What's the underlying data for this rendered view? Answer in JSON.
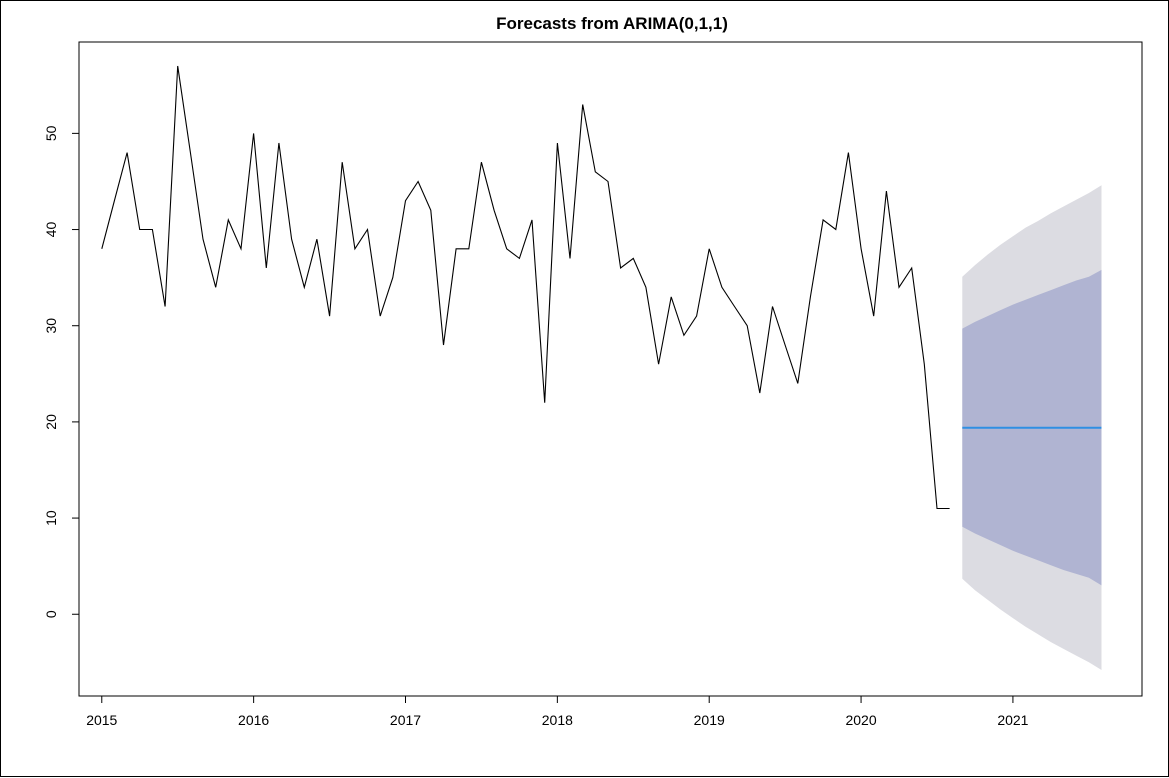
{
  "chart_data": {
    "type": "line",
    "title": "Forecasts from ARIMA(0,1,1)",
    "xlabel": "",
    "ylabel": "",
    "xlim": [
      2014.85,
      2021.85
    ],
    "ylim": [
      -8.5,
      59.5
    ],
    "x_ticks": [
      2015,
      2016,
      2017,
      2018,
      2019,
      2020,
      2021
    ],
    "x_tick_labels": [
      "2015",
      "2016",
      "2017",
      "2018",
      "2019",
      "2020",
      "2021"
    ],
    "y_ticks": [
      0,
      10,
      20,
      30,
      40,
      50
    ],
    "y_tick_labels": [
      "0",
      "10",
      "20",
      "30",
      "40",
      "50"
    ],
    "grid": false,
    "observed": {
      "start": 2015.0,
      "frequency": 12,
      "values": [
        38,
        43,
        48,
        40,
        40,
        32,
        57,
        48,
        39,
        34,
        41,
        38,
        50,
        36,
        49,
        39,
        34,
        39,
        31,
        47,
        38,
        40,
        31,
        35,
        43,
        45,
        42,
        28,
        38,
        38,
        47,
        42,
        38,
        37,
        41,
        22,
        49,
        37,
        53,
        46,
        45,
        36,
        37,
        34,
        26,
        33,
        29,
        31,
        38,
        34,
        32,
        30,
        23,
        32,
        28,
        24,
        33,
        41,
        40,
        48,
        38,
        31,
        44,
        34,
        36,
        26,
        11,
        11
      ],
      "color": "#000000"
    },
    "forecast": {
      "start": 2020.6667,
      "frequency": 12,
      "point": [
        19.4,
        19.4,
        19.4,
        19.4,
        19.4,
        19.4,
        19.4,
        19.4,
        19.4,
        19.4,
        19.4,
        19.4
      ],
      "lo80": [
        9.1,
        8.4,
        7.8,
        7.2,
        6.6,
        6.1,
        5.6,
        5.1,
        4.6,
        4.2,
        3.8,
        3.0
      ],
      "hi80": [
        29.7,
        30.4,
        31.0,
        31.6,
        32.2,
        32.7,
        33.2,
        33.7,
        34.2,
        34.7,
        35.1,
        35.8
      ],
      "lo95": [
        3.7,
        2.5,
        1.5,
        0.5,
        -0.4,
        -1.3,
        -2.1,
        -2.9,
        -3.6,
        -4.3,
        -5.0,
        -5.8
      ],
      "hi95": [
        35.1,
        36.3,
        37.4,
        38.4,
        39.3,
        40.2,
        40.9,
        41.7,
        42.4,
        43.1,
        43.8,
        44.6
      ],
      "line_color": "#2f8fe3",
      "band80_color": "#b0b4d2",
      "band95_color": "#dcdce2"
    }
  }
}
